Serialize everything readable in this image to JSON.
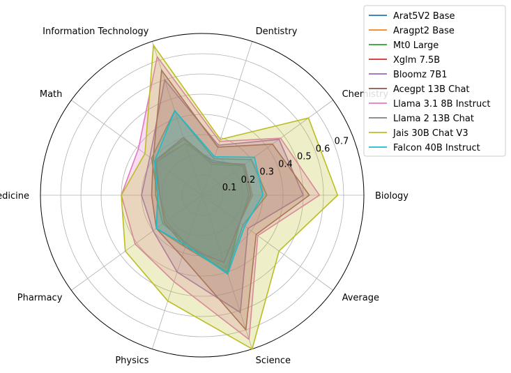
{
  "chart_data": {
    "type": "radar",
    "axes": [
      "Biology",
      "Chemistry",
      "Dentistry",
      "Information Technology",
      "Math",
      "Medicine",
      "Pharmacy",
      "Physics",
      "Science",
      "Average"
    ],
    "rlim": [
      0,
      0.8
    ],
    "rticks": [
      0.1,
      0.2,
      0.3,
      0.4,
      0.5,
      0.6,
      0.7
    ],
    "rtick_labels": [
      "0.1",
      "0.2",
      "0.3",
      "0.4",
      "0.5",
      "0.6",
      "0.7"
    ],
    "grid": true,
    "legend_position": "upper-right outside",
    "series": [
      {
        "name": "Arat5V2 Base",
        "color": "#1f77b4",
        "values": [
          0.25,
          0.25,
          0.18,
          0.27,
          0.28,
          0.21,
          0.22,
          0.26,
          0.4,
          0.23
        ]
      },
      {
        "name": "Aragpt2 Base",
        "color": "#ff7f0e",
        "values": [
          0.25,
          0.26,
          0.17,
          0.27,
          0.29,
          0.21,
          0.22,
          0.25,
          0.38,
          0.23
        ]
      },
      {
        "name": "Mt0 Large",
        "color": "#2ca02c",
        "values": [
          0.23,
          0.25,
          0.16,
          0.29,
          0.29,
          0.23,
          0.24,
          0.25,
          0.41,
          0.23
        ]
      },
      {
        "name": "Xglm 7.5B",
        "color": "#d62728",
        "values": [
          0.24,
          0.26,
          0.17,
          0.3,
          0.29,
          0.21,
          0.23,
          0.27,
          0.35,
          0.23
        ]
      },
      {
        "name": "Bloomz 7B1",
        "color": "#9467bd",
        "values": [
          0.5,
          0.47,
          0.26,
          0.6,
          0.32,
          0.3,
          0.3,
          0.4,
          0.61,
          0.28
        ]
      },
      {
        "name": "Acegpt 13B Chat",
        "color": "#8c564b",
        "values": [
          0.53,
          0.43,
          0.25,
          0.65,
          0.3,
          0.25,
          0.28,
          0.32,
          0.7,
          0.33
        ]
      },
      {
        "name": "Llama 3.1 8B Instruct",
        "color": "#e377c2",
        "values": [
          0.58,
          0.48,
          0.28,
          0.72,
          0.39,
          0.4,
          0.41,
          0.45,
          0.75,
          0.34
        ]
      },
      {
        "name": "Llama 2 13B Chat",
        "color": "#7f7f7f",
        "values": [
          0.32,
          0.3,
          0.19,
          0.44,
          0.31,
          0.22,
          0.28,
          0.27,
          0.4,
          0.25
        ]
      },
      {
        "name": "Jais 30B Chat V3",
        "color": "#bcbd22",
        "values": [
          0.67,
          0.65,
          0.29,
          0.78,
          0.35,
          0.4,
          0.47,
          0.55,
          0.8,
          0.47
        ]
      },
      {
        "name": "Falcon 40B Instruct",
        "color": "#17becf",
        "values": [
          0.3,
          0.32,
          0.2,
          0.44,
          0.29,
          0.22,
          0.28,
          0.26,
          0.41,
          0.26
        ]
      }
    ]
  }
}
